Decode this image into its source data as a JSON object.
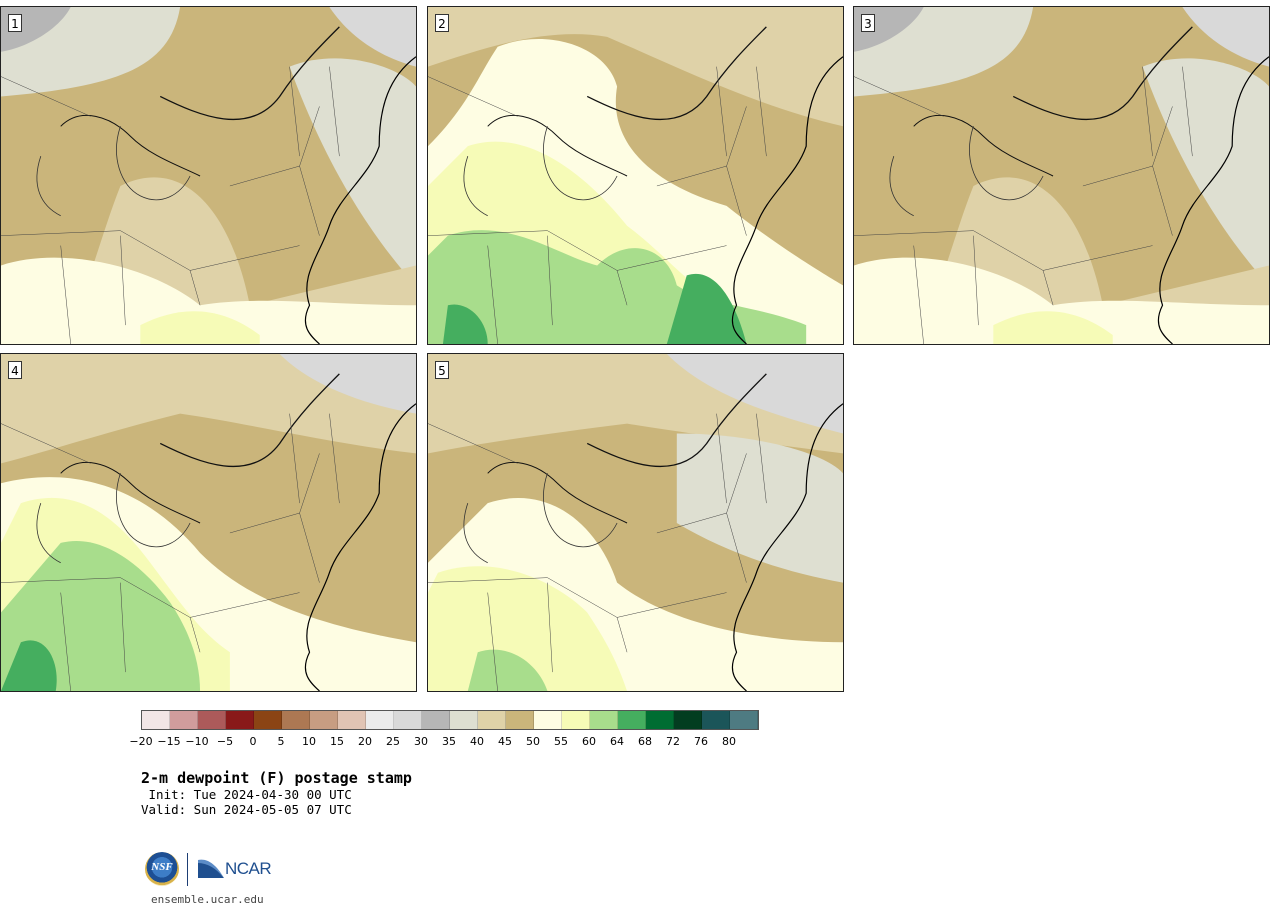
{
  "panels": [
    {
      "label": "1",
      "variant": "dry"
    },
    {
      "label": "2",
      "variant": "moist"
    },
    {
      "label": "3",
      "variant": "dry"
    },
    {
      "label": "4",
      "variant": "moist-west"
    },
    {
      "label": "5",
      "variant": "mid"
    }
  ],
  "colorbar": {
    "colors": [
      "#f2e6e6",
      "#d09c9c",
      "#ac5a5a",
      "#891919",
      "#8b4414",
      "#ad7853",
      "#c79d82",
      "#e1c4b4",
      "#ebebeb",
      "#d9d9d9",
      "#b6b6b6",
      "#dedfd1",
      "#dfd2a8",
      "#cab57b",
      "#fefde3",
      "#f6fbb7",
      "#a8dd8c",
      "#45ae5f",
      "#006d32",
      "#033d20",
      "#1b5559",
      "#4e7b82"
    ],
    "tick_labels": [
      "−20",
      "−15",
      "−10",
      "−5",
      "0",
      "5",
      "10",
      "15",
      "20",
      "25",
      "30",
      "35",
      "40",
      "45",
      "50",
      "55",
      "60",
      "64",
      "68",
      "72",
      "76",
      "80"
    ]
  },
  "title": "2-m dewpoint (F) postage stamp",
  "init_line": " Init: Tue 2024-04-30 00 UTC",
  "valid_line": "Valid: Sun 2024-05-05 07 UTC",
  "logos": {
    "nsf_text": "NSF",
    "ncar_text": "NCAR"
  },
  "url": "ensemble.ucar.edu",
  "icons": [
    "nsf-logo-icon",
    "ncar-logo-icon"
  ]
}
